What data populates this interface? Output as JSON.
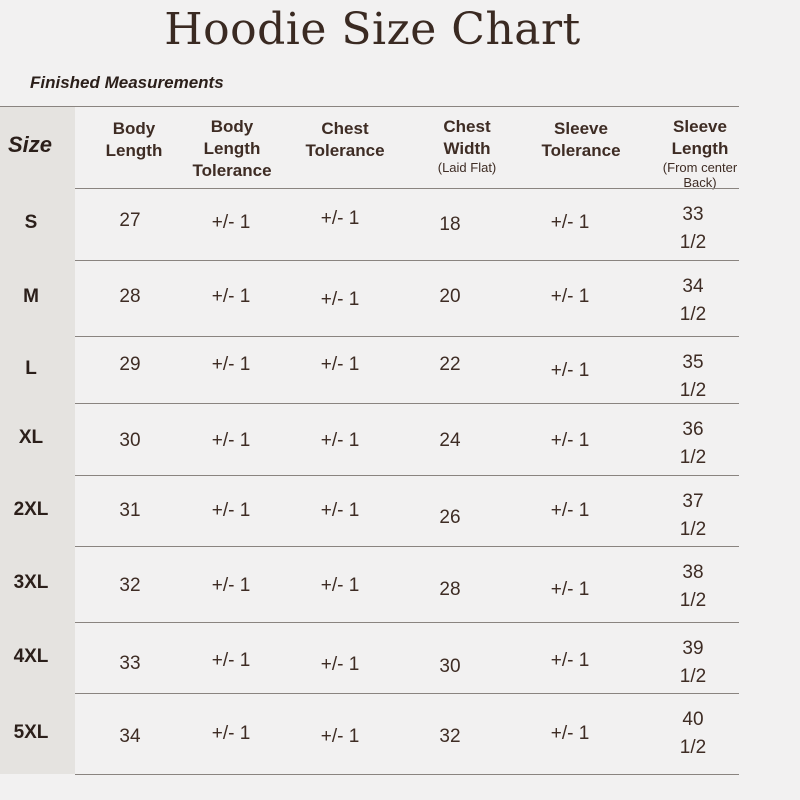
{
  "title": "Hoodie Size Chart",
  "subtitle": "Finished Measurements",
  "headers": {
    "size": "Size",
    "body_length": [
      "Body",
      "Length"
    ],
    "body_length_tolerance": [
      "Body",
      "Length",
      "Tolerance"
    ],
    "chest_tolerance": [
      "Chest",
      "Tolerance"
    ],
    "chest_width": [
      "Chest",
      "Width"
    ],
    "chest_width_note": "(Laid Flat)",
    "sleeve_tolerance": [
      "Sleeve",
      "Tolerance"
    ],
    "sleeve_length": [
      "Sleeve",
      "Length"
    ],
    "sleeve_length_note": "(From center Back)"
  },
  "rows": [
    {
      "size": "S",
      "body_length": "27",
      "body_length_tolerance": "+/- 1",
      "chest_tolerance": "+/- 1",
      "chest_width": "18",
      "sleeve_tolerance": "+/- 1",
      "sleeve_length": [
        "33",
        "1/2"
      ]
    },
    {
      "size": "M",
      "body_length": "28",
      "body_length_tolerance": "+/- 1",
      "chest_tolerance": "+/- 1",
      "chest_width": "20",
      "sleeve_tolerance": "+/- 1",
      "sleeve_length": [
        "34",
        "1/2"
      ]
    },
    {
      "size": "L",
      "body_length": "29",
      "body_length_tolerance": "+/- 1",
      "chest_tolerance": "+/- 1",
      "chest_width": "22",
      "sleeve_tolerance": "+/- 1",
      "sleeve_length": [
        "35",
        "1/2"
      ]
    },
    {
      "size": "XL",
      "body_length": "30",
      "body_length_tolerance": "+/- 1",
      "chest_tolerance": "+/- 1",
      "chest_width": "24",
      "sleeve_tolerance": "+/- 1",
      "sleeve_length": [
        "36",
        "1/2"
      ]
    },
    {
      "size": "2XL",
      "body_length": "31",
      "body_length_tolerance": "+/- 1",
      "chest_tolerance": "+/- 1",
      "chest_width": "26",
      "sleeve_tolerance": "+/- 1",
      "sleeve_length": [
        "37",
        "1/2"
      ]
    },
    {
      "size": "3XL",
      "body_length": "32",
      "body_length_tolerance": "+/- 1",
      "chest_tolerance": "+/- 1",
      "chest_width": "28",
      "sleeve_tolerance": "+/- 1",
      "sleeve_length": [
        "38",
        "1/2"
      ]
    },
    {
      "size": "4XL",
      "body_length": "33",
      "body_length_tolerance": "+/- 1",
      "chest_tolerance": "+/- 1",
      "chest_width": "30",
      "sleeve_tolerance": "+/- 1",
      "sleeve_length": [
        "39",
        "1/2"
      ]
    },
    {
      "size": "5XL",
      "body_length": "34",
      "body_length_tolerance": "+/- 1",
      "chest_tolerance": "+/- 1",
      "chest_width": "32",
      "sleeve_tolerance": "+/- 1",
      "sleeve_length": [
        "40",
        "1/2"
      ]
    }
  ]
}
